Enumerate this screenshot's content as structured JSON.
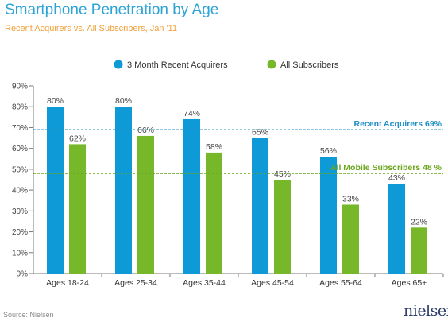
{
  "title": "Smartphone Penetration by Age",
  "subtitle": "Recent Acquirers vs. All Subscribers, Jan '11",
  "source": "Source: Nielsen",
  "brand": "nielsen",
  "colors": {
    "title": "#2ea3d6",
    "subtitle": "#f0a13a",
    "series_recent": "#0d9ad6",
    "series_all": "#77b82a",
    "ref_recent": "#1f8fc4",
    "ref_all": "#6aa61c"
  },
  "chart_data": {
    "type": "bar",
    "categories": [
      "Ages 18-24",
      "Ages 25-34",
      "Ages 35-44",
      "Ages 45-54",
      "Ages 55-64",
      "Ages 65+"
    ],
    "series": [
      {
        "name": "3 Month Recent Acquirers",
        "values": [
          80,
          80,
          74,
          65,
          56,
          43
        ],
        "labels": [
          "80%",
          "80%",
          "74%",
          "65%",
          "56%",
          "43%"
        ]
      },
      {
        "name": "All Subscribers",
        "values": [
          62,
          66,
          58,
          45,
          33,
          22
        ],
        "labels": [
          "62%",
          "66%",
          "58%",
          "45%",
          "33%",
          "22%"
        ]
      }
    ],
    "yticks": [
      "0%",
      "10%",
      "20%",
      "30%",
      "40%",
      "50%",
      "60%",
      "70%",
      "80%",
      "90%"
    ],
    "ylim": [
      0,
      90
    ],
    "reference_lines": [
      {
        "label": "Recent Acquirers 69%",
        "value": 69,
        "series": "3 Month Recent Acquirers"
      },
      {
        "label": "All Mobile Subscribers 48 %",
        "value": 48,
        "series": "All Subscribers"
      }
    ],
    "legend_position": "top-center",
    "grid": false
  }
}
